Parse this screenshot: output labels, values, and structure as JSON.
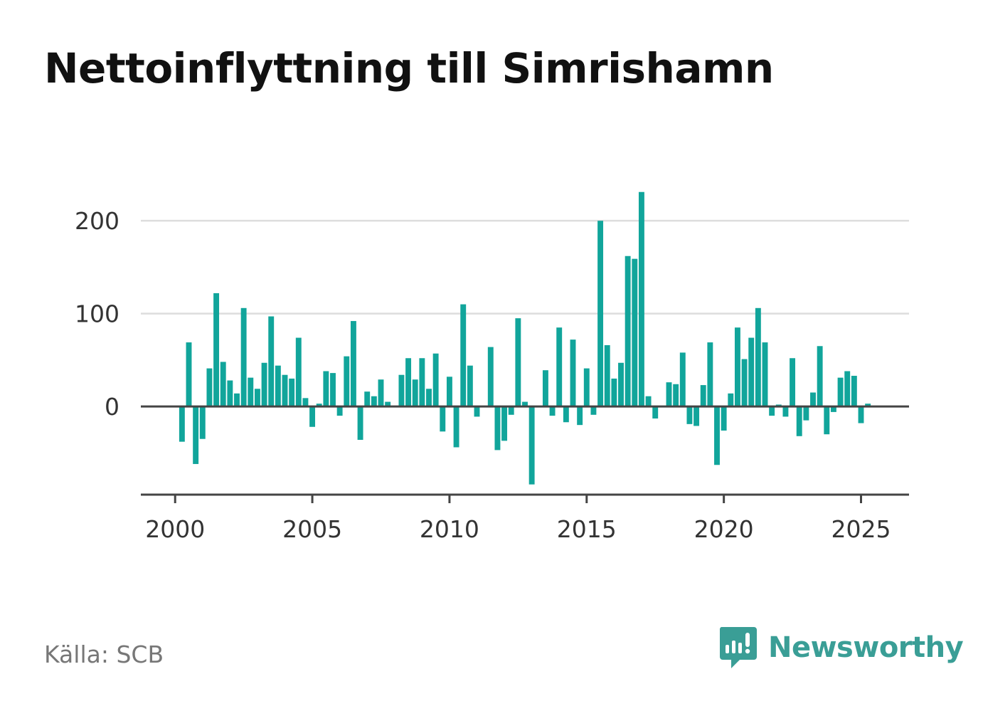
{
  "header": {
    "title": "Nettoinflyttning till Simrishamn"
  },
  "footer": {
    "source": "Källa: SCB",
    "brand": "Newsworthy"
  },
  "colors": {
    "bar": "#11a59b",
    "brand": "#3a9e96",
    "grid": "#dddddd",
    "axis": "#444444"
  },
  "icons": {
    "brand_logo": "bar-chart-speech-bubble-icon"
  },
  "chart_data": {
    "type": "bar",
    "title": "Nettoinflyttning till Simrishamn",
    "xlabel": "",
    "ylabel": "",
    "ylim": [
      -95,
      240
    ],
    "xlim": [
      1998.75,
      2026.75
    ],
    "x_ticks": [
      2000,
      2005,
      2010,
      2015,
      2020,
      2025
    ],
    "y_ticks": [
      0,
      100,
      200
    ],
    "grid": "horizontal",
    "series": [
      {
        "x": [
          2000.25,
          2000.5,
          2000.75,
          2001,
          2001.25,
          2001.5,
          2001.75,
          2002,
          2002.25,
          2002.5,
          2002.75,
          2003,
          2003.25,
          2003.5,
          2003.75,
          2004,
          2004.25,
          2004.5,
          2004.75,
          2005,
          2005.25,
          2005.5,
          2005.75,
          2006,
          2006.25,
          2006.5,
          2006.75,
          2007,
          2007.25,
          2007.5,
          2007.75,
          2008,
          2008.25,
          2008.5,
          2008.75,
          2009,
          2009.25,
          2009.5,
          2009.75,
          2010,
          2010.25,
          2010.5,
          2010.75,
          2011,
          2011.25,
          2011.5,
          2011.75,
          2012,
          2012.25,
          2012.5,
          2012.75,
          2013,
          2013.25,
          2013.5,
          2013.75,
          2014,
          2014.25,
          2014.5,
          2014.75,
          2015,
          2015.25,
          2015.5,
          2015.75,
          2016,
          2016.25,
          2016.5,
          2016.75,
          2017,
          2017.25,
          2017.5,
          2017.75,
          2018,
          2018.25,
          2018.5,
          2018.75,
          2019,
          2019.25,
          2019.5,
          2019.75,
          2020,
          2020.25,
          2020.5,
          2020.75,
          2021,
          2021.25,
          2021.5,
          2021.75,
          2022,
          2022.25,
          2022.5,
          2022.75,
          2023,
          2023.25,
          2023.5,
          2023.75,
          2024,
          2024.25,
          2024.5,
          2024.75,
          2025,
          2025.25
        ],
        "values": [
          -38,
          69,
          -62,
          -35,
          41,
          122,
          48,
          28,
          14,
          106,
          31,
          19,
          47,
          97,
          44,
          34,
          30,
          74,
          9,
          -22,
          3,
          38,
          36,
          -10,
          54,
          92,
          -36,
          16,
          11,
          29,
          5,
          0,
          34,
          52,
          29,
          52,
          19,
          57,
          -27,
          32,
          -44,
          110,
          44,
          -11,
          0,
          64,
          -47,
          -37,
          -9,
          95,
          5,
          -84,
          0,
          39,
          -10,
          85,
          -17,
          72,
          -20,
          41,
          -9,
          200,
          66,
          30,
          47,
          162,
          159,
          231,
          11,
          -13,
          0,
          26,
          24,
          58,
          -19,
          -21,
          23,
          69,
          -63,
          -26,
          14,
          85,
          51,
          74,
          106,
          69,
          -10,
          2,
          -11,
          52,
          -32,
          -15,
          15,
          65,
          -30,
          -6,
          31,
          38,
          33,
          -18,
          3
        ]
      }
    ]
  }
}
